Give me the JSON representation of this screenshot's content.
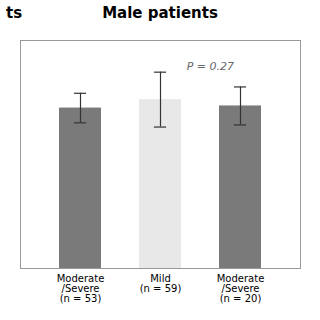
{
  "chart_data": {
    "type": "bar",
    "title": "Male patients",
    "categories": [
      "Moderate\n/Severe\n(n = 53)",
      "Mild\n(n = 59)",
      "Moderate\n/Severe\n(n = 20)"
    ],
    "values": [
      76,
      80,
      77
    ],
    "errors": [
      7,
      13,
      9
    ],
    "colors": [
      "#7a7a7a",
      "#e8e8e8",
      "#7a7a7a"
    ],
    "ylim": [
      0,
      108
    ],
    "yticks": [],
    "grid": false,
    "tick_labels": "x",
    "annotations": [
      {
        "text": "P = 0.27",
        "y": 94
      },
      {
        "text": "ts"
      }
    ]
  }
}
